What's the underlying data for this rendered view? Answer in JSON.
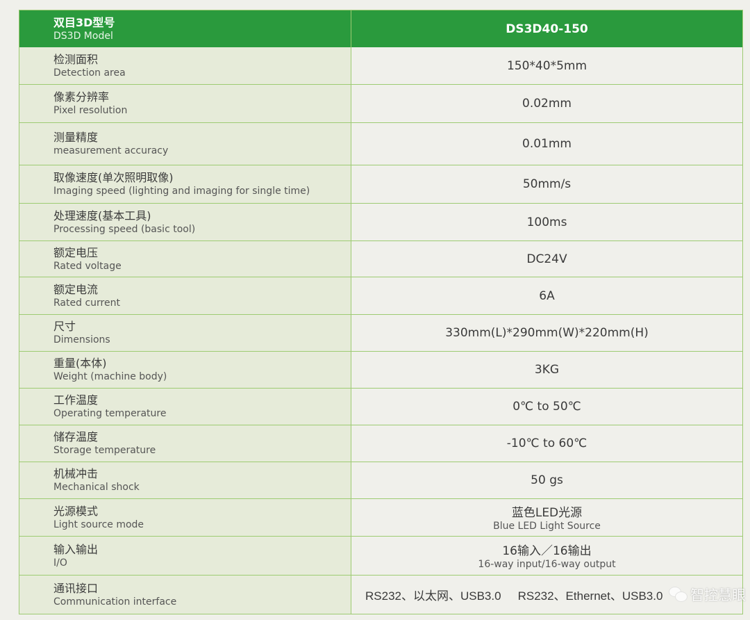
{
  "header": {
    "label_cn": "双目3D型号",
    "label_en": "DS3D Model",
    "value": "DS3D40-150"
  },
  "rows": [
    {
      "cn": "检测面积",
      "en": "Detection area",
      "value": "150*40*5mm"
    },
    {
      "cn": "像素分辨率",
      "en": "Pixel resolution",
      "value": "0.02mm"
    },
    {
      "cn": "测量精度",
      "en": "measurement accuracy",
      "value": "0.01mm"
    },
    {
      "cn": "取像速度(单次照明取像)",
      "en": "Imaging speed (lighting and imaging for single time)",
      "value": "50mm/s"
    },
    {
      "cn": "处理速度(基本工具)",
      "en": "Processing speed (basic tool)",
      "value": "100ms"
    },
    {
      "cn": "额定电压",
      "en": "Rated voltage",
      "value": "DC24V"
    },
    {
      "cn": "额定电流",
      "en": "Rated current",
      "value": "6A"
    },
    {
      "cn": "尺寸",
      "en": "Dimensions",
      "value": "330mm(L)*290mm(W)*220mm(H)"
    },
    {
      "cn": "重量(本体)",
      "en": "Weight (machine body)",
      "value": "3KG"
    },
    {
      "cn": "工作温度",
      "en": "Operating temperature",
      "value": "0℃ to 50℃"
    },
    {
      "cn": "储存温度",
      "en": "Storage temperature",
      "value": "-10℃ to 60℃"
    },
    {
      "cn": "机械冲击",
      "en": "Mechanical shock",
      "value": "50 gs"
    },
    {
      "cn": "光源模式",
      "en": "Light source mode",
      "value": "蓝色LED光源",
      "value_sub": "Blue LED Light Source"
    },
    {
      "cn": "输入输出",
      "en": "I/O",
      "value": "16输入／16输出",
      "value_sub": "16-way input/16-way output"
    },
    {
      "cn": "通讯接口",
      "en": "Communication interface",
      "value": "RS232、以太网、USB3.0",
      "value_2": "RS232、Ethernet、USB3.0"
    }
  ],
  "watermark": {
    "text": "智控慧眼",
    "icon": "wechat-icon"
  },
  "colors": {
    "header_green": "#2a9a3d",
    "border": "#9dcb72",
    "label_bg": "#e6ebd9",
    "value_bg": "#f0f0eb"
  }
}
